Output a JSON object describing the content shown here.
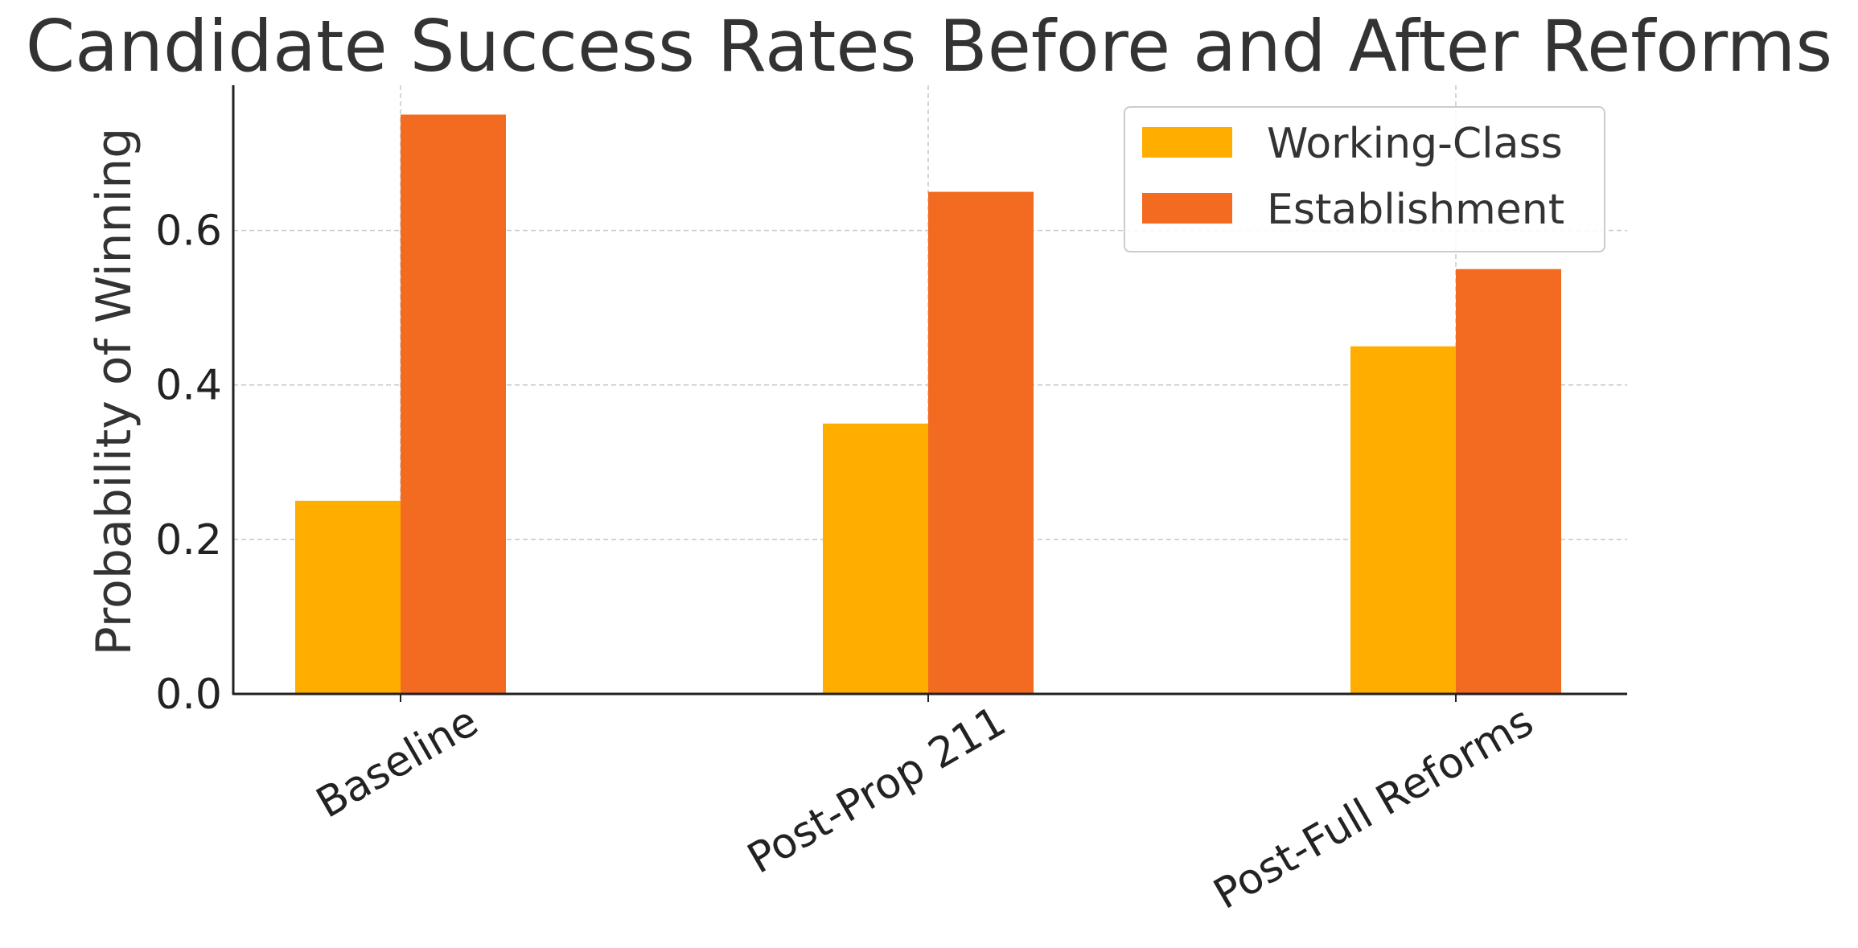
{
  "chart_data": {
    "type": "bar",
    "title": "Candidate Success Rates Before and After Reforms",
    "xlabel": "",
    "ylabel": "Probability of Winning",
    "categories": [
      "Baseline",
      "Post-Prop 211",
      "Post-Full Reforms"
    ],
    "series": [
      {
        "name": "Working-Class",
        "values": [
          0.25,
          0.35,
          0.45
        ],
        "color": "#FFAE00"
      },
      {
        "name": "Establishment",
        "values": [
          0.75,
          0.65,
          0.55
        ],
        "color": "#F26B21"
      }
    ],
    "ylim": [
      0,
      0.788
    ],
    "yticks": [
      0.0,
      0.2,
      0.4,
      0.6
    ],
    "ytick_labels": [
      "0.0",
      "0.2",
      "0.4",
      "0.6"
    ],
    "grid": true,
    "legend_position": "top-right",
    "xtick_rotation": -30
  }
}
